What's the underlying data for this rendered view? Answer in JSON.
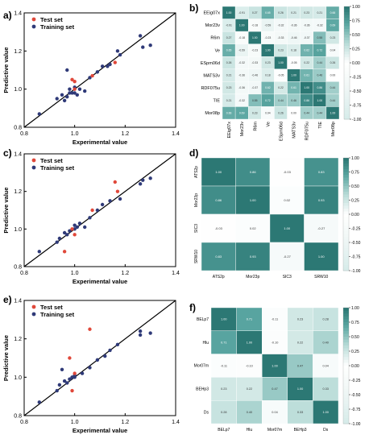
{
  "colors": {
    "test": "#e0483a",
    "train": "#2f3a78",
    "teal": "#2f7f7b",
    "white": "#ffffff"
  },
  "chart_data": [
    {
      "panel": "a)",
      "type": "scatter",
      "xlabel": "Experimental value",
      "ylabel": "Predictive value",
      "xlim": [
        0.8,
        1.4
      ],
      "ylim": [
        0.8,
        1.4
      ],
      "xticks": [
        "0.8",
        "1.0",
        "1.2",
        "1.4"
      ],
      "yticks": [
        "0.8",
        "1.0",
        "1.2",
        "1.4"
      ],
      "legend": [
        "Test set",
        "Training set"
      ],
      "series": [
        {
          "name": "Test set",
          "points": [
            [
              0.99,
              1.05
            ],
            [
              1.0,
              1.04
            ],
            [
              1.07,
              1.07
            ],
            [
              1.16,
              1.14
            ],
            [
              1.0,
              1.0
            ]
          ]
        },
        {
          "name": "Training set",
          "points": [
            [
              0.86,
              0.87
            ],
            [
              0.93,
              0.95
            ],
            [
              0.95,
              0.97
            ],
            [
              0.96,
              0.94
            ],
            [
              0.97,
              0.96
            ],
            [
              0.98,
              1.0
            ],
            [
              0.98,
              0.98
            ],
            [
              0.99,
              0.98
            ],
            [
              1.0,
              0.98
            ],
            [
              1.0,
              1.01
            ],
            [
              1.01,
              0.97
            ],
            [
              1.02,
              1.0
            ],
            [
              1.04,
              0.99
            ],
            [
              1.06,
              1.06
            ],
            [
              1.09,
              1.09
            ],
            [
              1.11,
              1.12
            ],
            [
              1.13,
              1.12
            ],
            [
              1.14,
              1.13
            ],
            [
              1.17,
              1.2
            ],
            [
              1.18,
              1.18
            ],
            [
              1.26,
              1.28
            ],
            [
              1.27,
              1.22
            ],
            [
              1.3,
              1.23
            ],
            [
              0.97,
              1.1
            ]
          ]
        }
      ]
    },
    {
      "panel": "c)",
      "type": "scatter",
      "xlabel": "Experimental value",
      "ylabel": "Predictive value",
      "xlim": [
        0.8,
        1.4
      ],
      "ylim": [
        0.8,
        1.4
      ],
      "xticks": [
        "0.8",
        "1.0",
        "1.2",
        "1.4"
      ],
      "yticks": [
        "0.8",
        "1.0",
        "1.2",
        "1.4"
      ],
      "legend": [
        "Test set",
        "Training set"
      ],
      "series": [
        {
          "name": "Test set",
          "points": [
            [
              0.96,
              0.88
            ],
            [
              0.99,
              1.0
            ],
            [
              1.0,
              0.97
            ],
            [
              1.07,
              1.1
            ],
            [
              1.16,
              1.25
            ],
            [
              1.17,
              1.2
            ]
          ]
        },
        {
          "name": "Training set",
          "points": [
            [
              0.86,
              0.88
            ],
            [
              0.93,
              0.93
            ],
            [
              0.94,
              0.95
            ],
            [
              0.96,
              0.98
            ],
            [
              0.97,
              0.97
            ],
            [
              0.98,
              0.99
            ],
            [
              1.0,
              1.02
            ],
            [
              1.0,
              1.0
            ],
            [
              1.01,
              1.01
            ],
            [
              1.02,
              1.03
            ],
            [
              1.04,
              1.01
            ],
            [
              1.06,
              1.06
            ],
            [
              1.09,
              1.1
            ],
            [
              1.11,
              1.13
            ],
            [
              1.14,
              1.15
            ],
            [
              1.18,
              1.16
            ],
            [
              1.26,
              1.24
            ],
            [
              1.27,
              1.26
            ],
            [
              1.3,
              1.27
            ]
          ]
        }
      ]
    },
    {
      "panel": "e)",
      "type": "scatter",
      "xlabel": "Experimental value",
      "ylabel": "Predictive value",
      "xlim": [
        0.8,
        1.4
      ],
      "ylim": [
        0.8,
        1.4
      ],
      "xticks": [
        "0.8",
        "1.0",
        "1.2",
        "1.4"
      ],
      "yticks": [
        "0.8",
        "1.0",
        "1.2",
        "1.4"
      ],
      "legend": [
        "Test set",
        "Training set"
      ],
      "series": [
        {
          "name": "Test set",
          "points": [
            [
              0.98,
              1.1
            ],
            [
              0.99,
              0.93
            ],
            [
              1.0,
              1.02
            ],
            [
              1.06,
              1.25
            ]
          ]
        },
        {
          "name": "Training set",
          "points": [
            [
              0.86,
              0.87
            ],
            [
              0.93,
              0.93
            ],
            [
              0.94,
              0.96
            ],
            [
              0.95,
              1.04
            ],
            [
              0.96,
              0.98
            ],
            [
              0.97,
              0.97
            ],
            [
              0.98,
              0.99
            ],
            [
              0.99,
              1.0
            ],
            [
              1.0,
              1.0
            ],
            [
              1.0,
              1.01
            ],
            [
              1.03,
              1.02
            ],
            [
              1.06,
              1.05
            ],
            [
              1.09,
              1.09
            ],
            [
              1.12,
              1.11
            ],
            [
              1.14,
              1.14
            ],
            [
              1.17,
              1.17
            ],
            [
              1.26,
              1.24
            ],
            [
              1.26,
              1.22
            ],
            [
              1.3,
              1.23
            ]
          ]
        }
      ]
    },
    {
      "panel": "b)",
      "type": "heatmap",
      "labels": [
        "EEig07x",
        "Mor23v",
        "R6m",
        "Ve",
        "ESpm06d",
        "MATS3v",
        "RDF075u",
        "TIE",
        "Mor08p"
      ],
      "matrix": [
        [
          1.0,
          -0.91,
          0.27,
          0.65,
          0.26,
          0.21,
          0.23,
          0.21,
          0.66
        ],
        [
          -0.91,
          1.0,
          -0.18,
          -0.59,
          -0.32,
          -0.36,
          -0.36,
          -0.32,
          0.69
        ],
        [
          0.27,
          -0.18,
          1.0,
          -0.23,
          -0.33,
          -0.46,
          -0.37,
          0.55,
          0.23
        ],
        [
          0.65,
          -0.59,
          -0.23,
          1.0,
          0.23,
          0.18,
          0.62,
          0.72,
          0.04
        ],
        [
          0.26,
          -0.32,
          -0.33,
          0.23,
          1.0,
          -0.05,
          0.22,
          0.44,
          0.26
        ],
        [
          0.21,
          -0.36,
          -0.46,
          0.18,
          -0.05,
          1.0,
          0.61,
          0.46,
          -0.0
        ],
        [
          0.23,
          -0.36,
          -0.37,
          0.62,
          0.22,
          0.61,
          1.0,
          0.86,
          0.44
        ],
        [
          0.21,
          -0.32,
          0.55,
          0.72,
          0.44,
          0.46,
          0.86,
          1.0,
          0.44
        ],
        [
          0.66,
          0.69,
          0.23,
          0.04,
          0.26,
          -0.0,
          0.44,
          0.44,
          1.0
        ]
      ],
      "colorbar": [
        "1.00",
        "0.75",
        "0.50",
        "0.25",
        "0.00",
        "-0.25",
        "-0.50",
        "-0.75",
        "-1.00"
      ]
    },
    {
      "panel": "d)",
      "type": "heatmap",
      "labels": [
        "ATS2p",
        "Mor23p",
        "SIC3",
        "SRW10"
      ],
      "matrix": [
        [
          1.0,
          0.86,
          -0.03,
          0.83
        ],
        [
          0.86,
          1.0,
          0.02,
          0.93
        ],
        [
          -0.03,
          0.02,
          1.0,
          -0.27
        ],
        [
          0.83,
          0.93,
          -0.27,
          1.0
        ]
      ],
      "colorbar": [
        "1.00",
        "0.75",
        "0.50",
        "0.25",
        "0.00",
        "-0.25",
        "-0.50",
        "-0.75",
        "-1.00"
      ]
    },
    {
      "panel": "f)",
      "type": "heatmap",
      "labels": [
        "BELp7",
        "Hlu",
        "Mor07m",
        "BEHp3",
        "Ds"
      ],
      "matrix": [
        [
          1.0,
          0.71,
          -0.11,
          0.23,
          0.28
        ],
        [
          0.71,
          1.0,
          -0.1,
          0.22,
          0.4
        ],
        [
          -0.11,
          -0.1,
          1.0,
          0.47,
          0.04
        ],
        [
          0.23,
          0.22,
          0.47,
          1.0,
          0.33
        ],
        [
          0.28,
          0.4,
          0.04,
          0.33,
          1.0
        ]
      ],
      "colorbar": [
        "1.00",
        "0.75",
        "0.50",
        "0.25",
        "0.00",
        "-0.25",
        "-0.50",
        "-0.75",
        "-1.00"
      ]
    }
  ]
}
